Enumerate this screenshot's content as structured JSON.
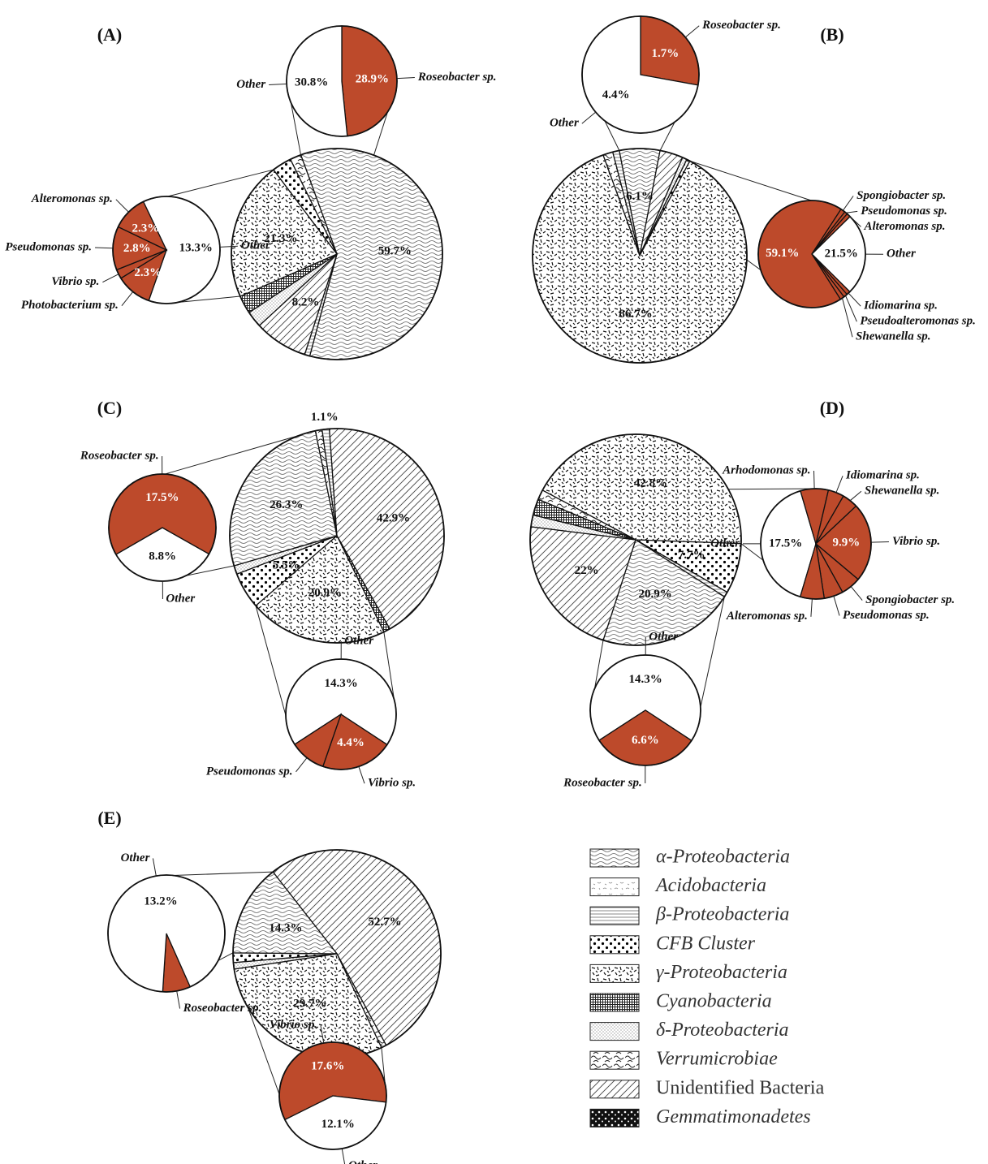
{
  "legend": [
    {
      "name": "α-Proteobacteria",
      "fill": "alpha",
      "italic": true
    },
    {
      "name": "Acidobacteria",
      "fill": "acido",
      "italic": true
    },
    {
      "name": "β-Proteobacteria",
      "fill": "beta",
      "italic": true
    },
    {
      "name": "CFB Cluster",
      "fill": "cfb",
      "italic": true
    },
    {
      "name": "γ-Proteobacteria",
      "fill": "gamma",
      "italic": true
    },
    {
      "name": "Cyanobacteria",
      "fill": "cyano",
      "italic": true
    },
    {
      "name": "δ-Proteobacteria",
      "fill": "delta",
      "italic": true
    },
    {
      "name": "Verrumicrobiae",
      "fill": "verruco",
      "italic": true
    },
    {
      "name": "Unidentified Bacteria",
      "fill": "unident",
      "italic": false
    },
    {
      "name": "Gemmatimonadetes",
      "fill": "gemma",
      "italic": true
    }
  ],
  "chart_data": [
    {
      "type": "pie",
      "title": "(A)",
      "values": [
        59.7,
        0.8,
        8.2,
        2.5,
        2.8,
        21.3,
        3.0,
        1.7
      ],
      "value_labels": [
        "59.7%",
        null,
        "8.2%",
        null,
        null,
        "21.3%",
        null,
        null
      ],
      "fills": [
        "alpha",
        "beta",
        "unident",
        "delta",
        "cyano",
        "gamma",
        "cfb",
        "verruco"
      ]
    },
    {
      "type": "pie",
      "categories": [
        "Roseobacter sp.",
        "Other"
      ],
      "values": [
        28.9,
        30.8
      ],
      "value_labels": [
        "28.9%",
        "30.8%"
      ],
      "colors": [
        "#bd4a2b",
        "#ffffff"
      ]
    },
    {
      "type": "pie",
      "categories": [
        "Other",
        "Photobacterium sp.",
        "Vibrio sp.",
        "Pseudomonas sp.",
        "Alteromonas sp."
      ],
      "values": [
        13.3,
        2.3,
        0.6,
        2.8,
        2.3
      ],
      "value_labels": [
        "13.3%",
        "2.3%",
        null,
        "2.8%",
        "2.3%"
      ],
      "colors": [
        "#ffffff",
        "#bd4a2b",
        "#bd4a2b",
        "#bd4a2b",
        "#bd4a2b"
      ]
    },
    {
      "type": "pie",
      "title": "(B)",
      "values": [
        1.5,
        1.0,
        6.1,
        3.5,
        0.7,
        0.5,
        86.7
      ],
      "value_labels": [
        null,
        null,
        "6.1%",
        null,
        null,
        null,
        "86.7%"
      ],
      "fills": [
        "verruco",
        "beta",
        "alpha",
        "unident",
        "delta",
        "cfb",
        "gamma"
      ]
    },
    {
      "type": "pie",
      "categories": [
        "Roseobacter sp.",
        "Other"
      ],
      "values": [
        1.7,
        4.4
      ],
      "value_labels": [
        "1.7%",
        "4.4%"
      ],
      "colors": [
        "#bd4a2b",
        "#ffffff"
      ]
    },
    {
      "type": "pie",
      "categories": [
        "Other",
        "Idiomarina sp.",
        "Pseudoalteromonas sp.",
        "Shewanella sp.",
        null,
        "Spongiobacter sp.",
        "Pseudomonas sp.",
        "Alteromonas sp."
      ],
      "values": [
        21.5,
        1.0,
        1.0,
        1.1,
        59.1,
        1.2,
        0.8,
        1.0
      ],
      "value_labels": [
        "21.5%",
        null,
        null,
        null,
        "59.1%",
        null,
        null,
        null
      ],
      "colors": [
        "#ffffff",
        "#bd4a2b",
        "#bd4a2b",
        "#bd4a2b",
        "#bd4a2b",
        "#bd4a2b",
        "#bd4a2b",
        "#bd4a2b"
      ]
    },
    {
      "type": "pie",
      "title": "(C)",
      "values": [
        1.1,
        42.9,
        1.0,
        20.9,
        5.5,
        1.3,
        26.3,
        1.0
      ],
      "value_labels": [
        "1.1%",
        "42.9%",
        null,
        "20.9%",
        "5.5%",
        null,
        "26.3%",
        null
      ],
      "fills": [
        "beta",
        "unident",
        "cyano",
        "gamma",
        "cfb",
        "delta",
        "alpha",
        "verruco"
      ]
    },
    {
      "type": "pie",
      "categories": [
        "Other",
        "Roseobacter sp."
      ],
      "values": [
        8.8,
        17.5
      ],
      "value_labels": [
        "8.8%",
        "17.5%"
      ],
      "colors": [
        "#ffffff",
        "#bd4a2b"
      ]
    },
    {
      "type": "pie",
      "categories": [
        "Other",
        "Vibrio sp.",
        "Pseudomonas sp."
      ],
      "values": [
        14.3,
        4.4,
        2.2
      ],
      "value_labels": [
        "14.3%",
        "4.4%",
        null
      ],
      "colors": [
        "#ffffff",
        "#bd4a2b",
        "#bd4a2b"
      ]
    },
    {
      "type": "pie",
      "title": "(D)",
      "values": [
        42.8,
        7.7,
        0.8,
        20.9,
        22,
        1.8,
        2.5,
        1.5
      ],
      "value_labels": [
        "42.8%",
        "7.7%",
        null,
        "20.9%",
        "22%",
        null,
        null,
        null
      ],
      "fills": [
        "gamma",
        "cfb",
        "beta",
        "alpha",
        "unident",
        "delta",
        "cyano",
        "verruco"
      ]
    },
    {
      "type": "pie",
      "categories": [
        "Other",
        "Arhodomonas sp.",
        "Idiomarina sp.",
        "Shewanella sp.",
        "Vibrio sp.",
        "Spongiobacter sp.",
        "Pseudomonas sp.",
        "Alteromonas sp."
      ],
      "values": [
        17.5,
        3.5,
        2.0,
        2.0,
        9.9,
        2.5,
        2.4,
        3.0
      ],
      "value_labels": [
        "17.5%",
        null,
        null,
        null,
        "9.9%",
        null,
        null,
        null
      ],
      "colors": [
        "#ffffff",
        "#bd4a2b",
        "#bd4a2b",
        "#bd4a2b",
        "#bd4a2b",
        "#bd4a2b",
        "#bd4a2b",
        "#bd4a2b"
      ]
    },
    {
      "type": "pie",
      "categories": [
        "Other",
        "Roseobacter sp."
      ],
      "values": [
        14.3,
        6.6
      ],
      "value_labels": [
        "14.3%",
        "6.6%"
      ],
      "colors": [
        "#ffffff",
        "#bd4a2b"
      ]
    },
    {
      "type": "pie",
      "title": "(E)",
      "values": [
        52.7,
        0.8,
        29.7,
        1.0,
        1.5,
        14.3
      ],
      "value_labels": [
        "52.7%",
        null,
        "29.7%",
        null,
        null,
        "14.3%"
      ],
      "fills": [
        "unident",
        "verruco",
        "gamma",
        "delta",
        "cfb",
        "alpha"
      ]
    },
    {
      "type": "pie",
      "categories": [
        "Roseobacter sp.",
        "Other"
      ],
      "values": [
        1.1,
        13.2
      ],
      "value_labels": [
        null,
        "13.2%"
      ],
      "colors": [
        "#bd4a2b",
        "#ffffff"
      ]
    },
    {
      "type": "pie",
      "categories": [
        "Vibrio sp.",
        "Other"
      ],
      "values": [
        17.6,
        12.1
      ],
      "value_labels": [
        "17.6%",
        "12.1%"
      ],
      "colors": [
        "#bd4a2b",
        "#ffffff"
      ]
    }
  ]
}
